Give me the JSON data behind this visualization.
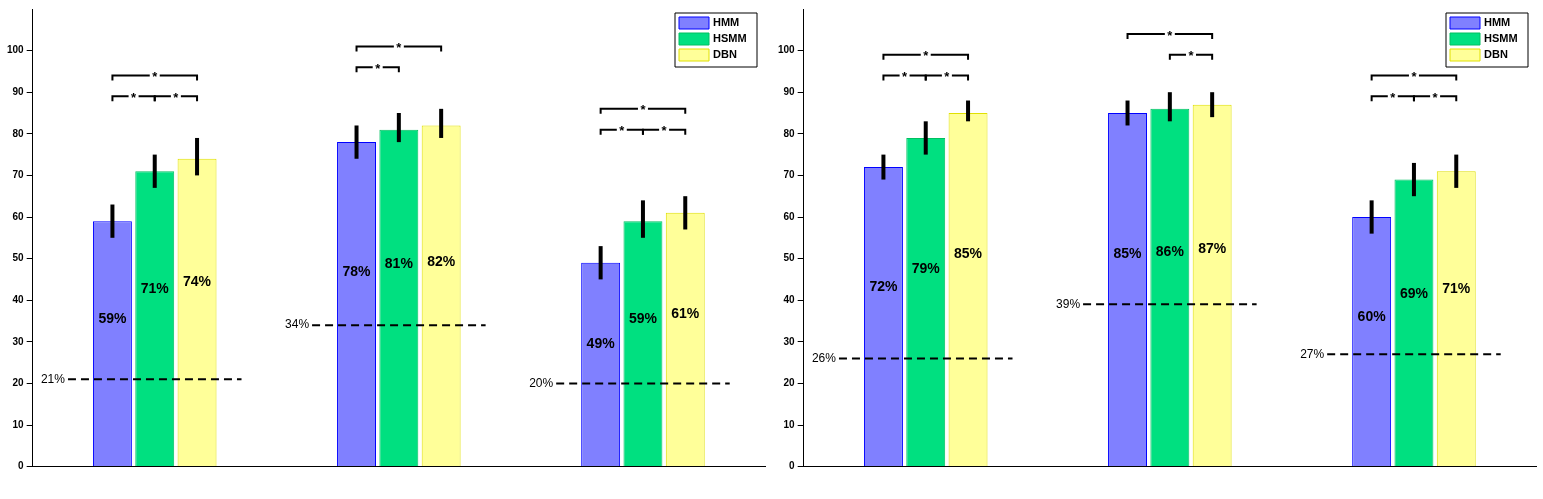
{
  "chart_data": [
    {
      "type": "bar",
      "categories": [
        null,
        null,
        null
      ],
      "ylim": [
        0,
        110
      ],
      "yticks": [
        0,
        10,
        20,
        30,
        40,
        50,
        60,
        70,
        80,
        90,
        100
      ],
      "legend": "top right",
      "grid": false,
      "series": [
        {
          "name": "HMM",
          "color": "#8080ff",
          "values": [
            59,
            78,
            49
          ],
          "errors": [
            [
              55,
              63
            ],
            [
              74,
              82
            ],
            [
              45,
              53
            ]
          ],
          "value_labels": [
            "59%",
            "78%",
            "49%"
          ]
        },
        {
          "name": "HSMM",
          "color": "#00e080",
          "values": [
            71,
            81,
            59
          ],
          "errors": [
            [
              67,
              75
            ],
            [
              78,
              85
            ],
            [
              55,
              64
            ]
          ],
          "value_labels": [
            "71%",
            "81%",
            "59%"
          ]
        },
        {
          "name": "DBN",
          "color": "#ffff99",
          "values": [
            74,
            82,
            61
          ],
          "errors": [
            [
              70,
              79
            ],
            [
              79,
              86
            ],
            [
              57,
              65
            ]
          ],
          "value_labels": [
            "74%",
            "82%",
            "61%"
          ]
        }
      ],
      "ref_lines": [
        {
          "axis": "y",
          "value": 21,
          "label": "21%",
          "line_style": "dashed"
        },
        {
          "axis": "y",
          "value": 34,
          "label": "34%",
          "line_style": "dashed"
        },
        {
          "axis": "y",
          "value": 20,
          "label": "20%",
          "line_style": "dashed"
        }
      ],
      "annotations": [
        "*",
        "*",
        "*",
        "*",
        "*",
        "*",
        "*",
        "*"
      ]
    },
    {
      "type": "bar",
      "categories": [
        null,
        null,
        null
      ],
      "ylim": [
        0,
        110
      ],
      "yticks": [
        0,
        10,
        20,
        30,
        40,
        50,
        60,
        70,
        80,
        90,
        100
      ],
      "legend": "top right",
      "grid": false,
      "series": [
        {
          "name": "HMM",
          "color": "#8080ff",
          "values": [
            72,
            85,
            60
          ],
          "errors": [
            [
              69,
              75
            ],
            [
              82,
              88
            ],
            [
              56,
              64
            ]
          ],
          "value_labels": [
            "72%",
            "85%",
            "60%"
          ]
        },
        {
          "name": "HSMM",
          "color": "#00e080",
          "values": [
            79,
            86,
            69
          ],
          "errors": [
            [
              75,
              83
            ],
            [
              83,
              90
            ],
            [
              65,
              73
            ]
          ],
          "value_labels": [
            "79%",
            "86%",
            "69%"
          ]
        },
        {
          "name": "DBN",
          "color": "#ffff99",
          "values": [
            85,
            87,
            71
          ],
          "errors": [
            [
              83,
              88
            ],
            [
              84,
              90
            ],
            [
              67,
              75
            ]
          ],
          "value_labels": [
            "85%",
            "87%",
            "71%"
          ]
        }
      ],
      "ref_lines": [
        {
          "axis": "y",
          "value": 26,
          "label": "26%",
          "line_style": "dashed"
        },
        {
          "axis": "y",
          "value": 39,
          "label": "39%",
          "line_style": "dashed"
        },
        {
          "axis": "y",
          "value": 27,
          "label": "27%",
          "line_style": "dashed"
        }
      ],
      "annotations": [
        "*",
        "*",
        "*",
        "*",
        "*",
        "*",
        "*",
        "*"
      ]
    }
  ]
}
